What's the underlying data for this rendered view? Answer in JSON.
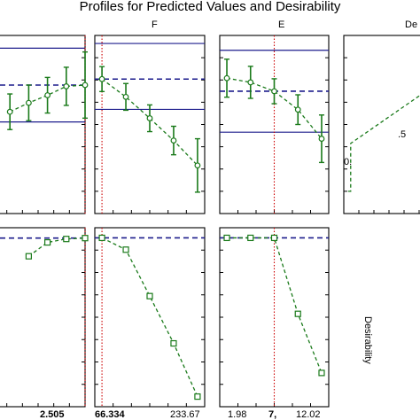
{
  "title": "Profiles for Predicted Values and Desirability",
  "column_labels": [
    "",
    "F",
    "E",
    "De"
  ],
  "right_axis_label": "Desirability",
  "colors": {
    "profile": "#1a7a1a",
    "limit_line": "#1c1c8c",
    "mean_line": "#1c1c8c",
    "current_marker": "#cc0000",
    "frame": "#000000"
  },
  "chart_data": [
    {
      "type": "line",
      "panel": "predicted-col1",
      "column_label": "",
      "x": [
        1,
        2,
        3,
        4,
        5
      ],
      "y": [
        6,
        6.7,
        7.3,
        8.0,
        8.1
      ],
      "err": [
        1.4,
        1.4,
        1.4,
        1.5,
        2.6
      ],
      "xlim": [
        0,
        5
      ],
      "ylim": [
        -2,
        12
      ],
      "upper_limit": 11,
      "mean": 8.1,
      "lower_limit": 5.2,
      "current_x": 5,
      "current_label": "2.505",
      "tick_labels": []
    },
    {
      "type": "line",
      "panel": "predicted-col2",
      "column_label": "F",
      "x": [
        0,
        1,
        2,
        3,
        4
      ],
      "y": [
        8.1,
        6.1,
        3.7,
        1.2,
        -1.6
      ],
      "err": [
        1.4,
        1.5,
        1.5,
        1.6,
        3.0
      ],
      "xlim": [
        -0.3,
        4.3
      ],
      "ylim": [
        -7,
        13
      ],
      "upper_limit": 12.1,
      "mean": 8.1,
      "lower_limit": 4.7,
      "current_x": 0,
      "tick_labels": [
        "66.334",
        "233.67"
      ]
    },
    {
      "type": "line",
      "panel": "predicted-col3",
      "column_label": "E",
      "x": [
        0,
        1,
        2,
        3,
        4
      ],
      "y": [
        6.8,
        6.1,
        4.6,
        1.5,
        -3.4
      ],
      "err": [
        3.2,
        2.7,
        2.1,
        2.5,
        4.0
      ],
      "xlim": [
        -0.3,
        4.3
      ],
      "ylim": [
        -16,
        14
      ],
      "upper_limit": 11.5,
      "mean": 4.6,
      "lower_limit": -2.3,
      "current_x": 2,
      "tick_labels": [
        "1.98",
        "7,",
        "12.02"
      ]
    },
    {
      "type": "line",
      "panel": "desirability-curve",
      "column_label": "De",
      "x": [
        0,
        0.03,
        0.03,
        1
      ],
      "y": [
        0,
        0,
        0.43,
        0.95
      ],
      "xlim": [
        -0.05,
        1.0
      ],
      "ylim": [
        -0.2,
        1.4
      ],
      "tick_labels": [
        "0.",
        ".5"
      ]
    },
    {
      "type": "line",
      "panel": "desirability-col1",
      "x": [
        2,
        3,
        4,
        5
      ],
      "y": [
        0.79,
        0.95,
        0.99,
        1.0
      ],
      "xlim": [
        0,
        5
      ],
      "ylim": [
        -0.95,
        1.12
      ],
      "mean": 1.0,
      "current_x": 5
    },
    {
      "type": "line",
      "panel": "desirability-col2",
      "x": [
        0,
        1,
        2,
        3,
        4
      ],
      "y": [
        1.0,
        0.86,
        0.31,
        -0.25,
        -0.88
      ],
      "xlim": [
        -0.3,
        4.3
      ],
      "ylim": [
        -1.0,
        1.12
      ],
      "mean": 1.0,
      "current_x": 0
    },
    {
      "type": "line",
      "panel": "desirability-col3",
      "x": [
        0,
        1,
        2,
        3,
        4
      ],
      "y": [
        1.0,
        1.0,
        1.0,
        0.1,
        -0.6
      ],
      "xlim": [
        -0.3,
        4.3
      ],
      "ylim": [
        -1.0,
        1.12
      ],
      "mean": 1.0,
      "current_x": 2
    }
  ]
}
